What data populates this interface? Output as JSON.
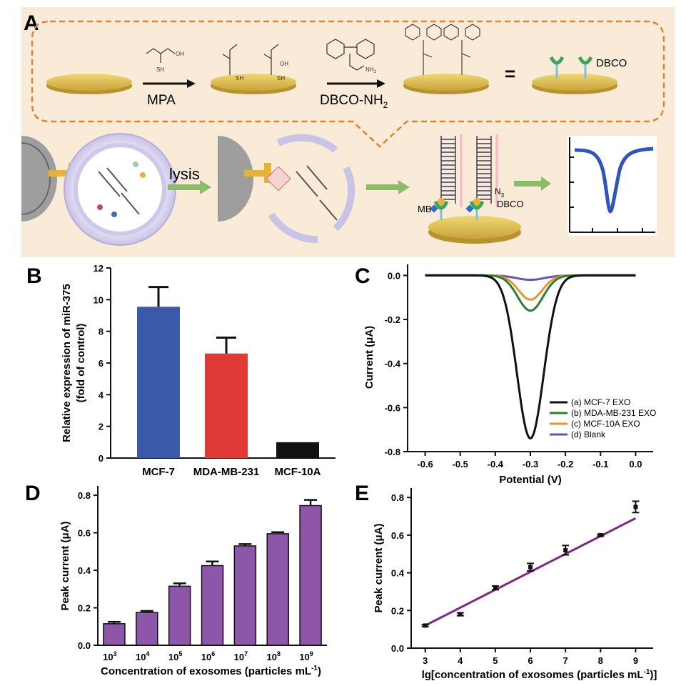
{
  "panel_a": {
    "letter": "A",
    "reagent_1": "MPA",
    "reagent_2": "DBCO-NH",
    "reagent_2_sub": "2",
    "equals": "=",
    "dbco_label": "DBCO",
    "lysis_label": "lysis",
    "mb_label": "MB",
    "n3_label": "N",
    "n3_sub": "3",
    "dbco_label_2": "DBCO",
    "sh_label": "SH",
    "oh_label": "OH",
    "nh2_label": "NH",
    "nh2_sub": "2",
    "colors": {
      "background": "#f9ebd8",
      "dashed": "#d9843a",
      "gold": "#e6c95a",
      "arrow": "#8dbb6a"
    }
  },
  "chart_data": [
    {
      "panel": "B",
      "type": "bar",
      "categories": [
        "MCF-7",
        "MDA-MB-231",
        "MCF-10A"
      ],
      "values": [
        9.55,
        6.6,
        1.0
      ],
      "errors": [
        1.25,
        1.0,
        0
      ],
      "colors": [
        "#3a5aa8",
        "#e03a36",
        "#111111"
      ],
      "ylabel": "Relative expression of miR-375",
      "ylabel2": "(fold of control)",
      "ylim": [
        0,
        12
      ],
      "yticks": [
        "0",
        "2",
        "4",
        "6",
        "8",
        "10",
        "12"
      ]
    },
    {
      "panel": "C",
      "type": "line",
      "xlabel": "Potential (V)",
      "ylabel": "Current (μA)",
      "xlim": [
        -0.65,
        0.05
      ],
      "ylim": [
        -0.8,
        0.05
      ],
      "xticks": [
        "-0.6",
        "-0.5",
        "-0.4",
        "-0.3",
        "-0.2",
        "-0.1",
        "0.0"
      ],
      "yticks": [
        "0.0",
        "-0.2",
        "-0.4",
        "-0.6",
        "-0.8"
      ],
      "series": [
        {
          "name": "(a) MCF-7 EXO",
          "color": "#111111",
          "peak_x": -0.3,
          "peak_y": -0.74,
          "width": 0.038
        },
        {
          "name": "(b) MDA-MB-231 EXO",
          "color": "#2e7d3a",
          "peak_x": -0.3,
          "peak_y": -0.16,
          "width": 0.036
        },
        {
          "name": "(c) MCF-10A EXO",
          "color": "#e8962c",
          "peak_x": -0.3,
          "peak_y": -0.11,
          "width": 0.034
        },
        {
          "name": "(d) Blank",
          "color": "#6a4fb5",
          "peak_x": -0.3,
          "peak_y": -0.02,
          "width": 0.04
        }
      ],
      "legend": "bottom-right"
    },
    {
      "panel": "D",
      "type": "bar",
      "categories": [
        "10",
        "10",
        "10",
        "10",
        "10",
        "10",
        "10"
      ],
      "category_exponents": [
        "3",
        "4",
        "5",
        "6",
        "7",
        "8",
        "9"
      ],
      "values": [
        0.115,
        0.175,
        0.315,
        0.425,
        0.53,
        0.595,
        0.745
      ],
      "errors": [
        0.01,
        0.008,
        0.015,
        0.022,
        0.01,
        0.008,
        0.03
      ],
      "color": "#8e56a8",
      "ylabel": "Peak current (μA)",
      "xlabel": "Concentration of exosomes (particles mL",
      "xlabel_sup": "-1",
      "xlabel_end": ")",
      "ylim": [
        0,
        0.85
      ],
      "yticks": [
        "0.0",
        "0.2",
        "0.4",
        "0.6",
        "0.8"
      ]
    },
    {
      "panel": "E",
      "type": "scatter",
      "x": [
        3,
        4,
        5,
        6,
        7,
        8,
        9
      ],
      "y": [
        0.12,
        0.18,
        0.32,
        0.43,
        0.52,
        0.6,
        0.75
      ],
      "errors": [
        0.005,
        0.008,
        0.01,
        0.02,
        0.025,
        0.005,
        0.03
      ],
      "fit": {
        "x0": 3,
        "y0": 0.12,
        "x1": 9,
        "y1": 0.69,
        "color": "#7b2a82"
      },
      "xlabel": "lg[concentration of exosomes (particles mL",
      "xlabel_sup": "-1",
      "xlabel_end": ")]",
      "ylabel": "Peak current (μA)",
      "xlim": [
        2.6,
        9.5
      ],
      "ylim": [
        0,
        0.85
      ],
      "xticks": [
        "3",
        "4",
        "5",
        "6",
        "7",
        "8",
        "9"
      ],
      "yticks": [
        "0.0",
        "0.2",
        "0.4",
        "0.6",
        "0.8"
      ]
    }
  ],
  "panel_letters": {
    "b": "B",
    "c": "C",
    "d": "D",
    "e": "E"
  }
}
